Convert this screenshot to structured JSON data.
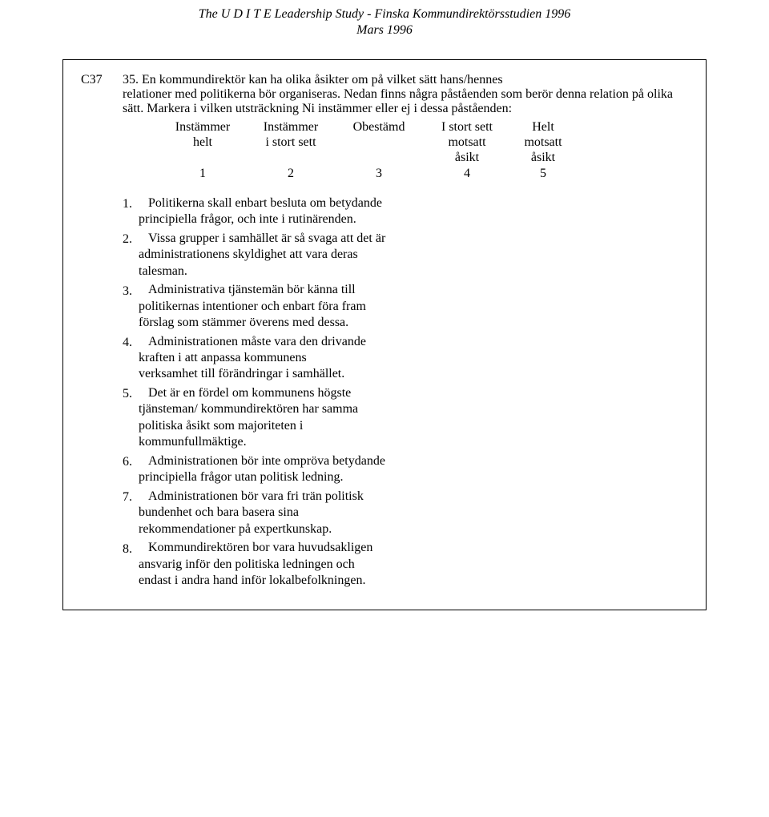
{
  "header": {
    "line1": "The U D I T E Leadership Study - Finska Kommundirektörsstudien 1996",
    "line2": "Mars 1996"
  },
  "question": {
    "code": "C37",
    "number_label": "35.",
    "text_part1": "En kommundirektör kan ha olika åsikter om på vilket sätt hans/hennes",
    "text_part2": "relationer med politikerna bör organiseras. Nedan finns några påståenden som berör denna relation på olika sätt. Markera i vilken utsträckning Ni instämmer eller ej i dessa påståenden:"
  },
  "scale": {
    "row1": {
      "c1": "Instämmer",
      "c2": "Instämmer",
      "c3": "Obestämd",
      "c4": "I stort sett",
      "c5": "Helt"
    },
    "row2": {
      "c1": "helt",
      "c2": "i stort sett",
      "c3": "",
      "c4": "motsatt",
      "c5": "motsatt"
    },
    "row3": {
      "c1": "",
      "c2": "",
      "c3": "",
      "c4": "åsikt",
      "c5": "åsikt"
    },
    "nums": {
      "c1": "1",
      "c2": "2",
      "c3": "3",
      "c4": "4",
      "c5": "5"
    }
  },
  "items": [
    {
      "num": "1.",
      "lines": [
        "Politikerna skall enbart besluta om betydande",
        "principiella frågor, och inte i rutinärenden."
      ]
    },
    {
      "num": "2.",
      "lines": [
        "Vissa grupper i samhället är så svaga att det är",
        "administrationens skyldighet att vara deras",
        "talesman."
      ]
    },
    {
      "num": "3.",
      "lines": [
        "Administrativa tjänstemän bör känna till",
        "politikernas intentioner och enbart föra fram",
        "förslag som stämmer överens med dessa."
      ]
    },
    {
      "num": "4.",
      "lines": [
        "Administrationen måste vara den drivande",
        "kraften i att anpassa kommunens",
        "verksamhet till förändringar i samhället."
      ]
    },
    {
      "num": "5.",
      "lines": [
        "Det är en fördel om kommunens högste",
        "tjänsteman/ kommundirektören har samma",
        "politiska åsikt som majoriteten i",
        "kommunfullmäktige."
      ]
    },
    {
      "num": "6.",
      "lines": [
        "Administrationen bör inte ompröva betydande",
        "principiella frågor utan politisk ledning."
      ]
    },
    {
      "num": "7.",
      "lines": [
        "Administrationen bör vara fri trän politisk",
        "bundenhet och bara basera sina",
        "rekommendationer på expertkunskap."
      ]
    },
    {
      "num": "8.",
      "lines": [
        "Kommundirektören bor vara huvudsakligen",
        "ansvarig inför den politiska ledningen och",
        "endast i andra hand inför lokalbefolkningen."
      ]
    }
  ],
  "checkbox_glyph": ""
}
